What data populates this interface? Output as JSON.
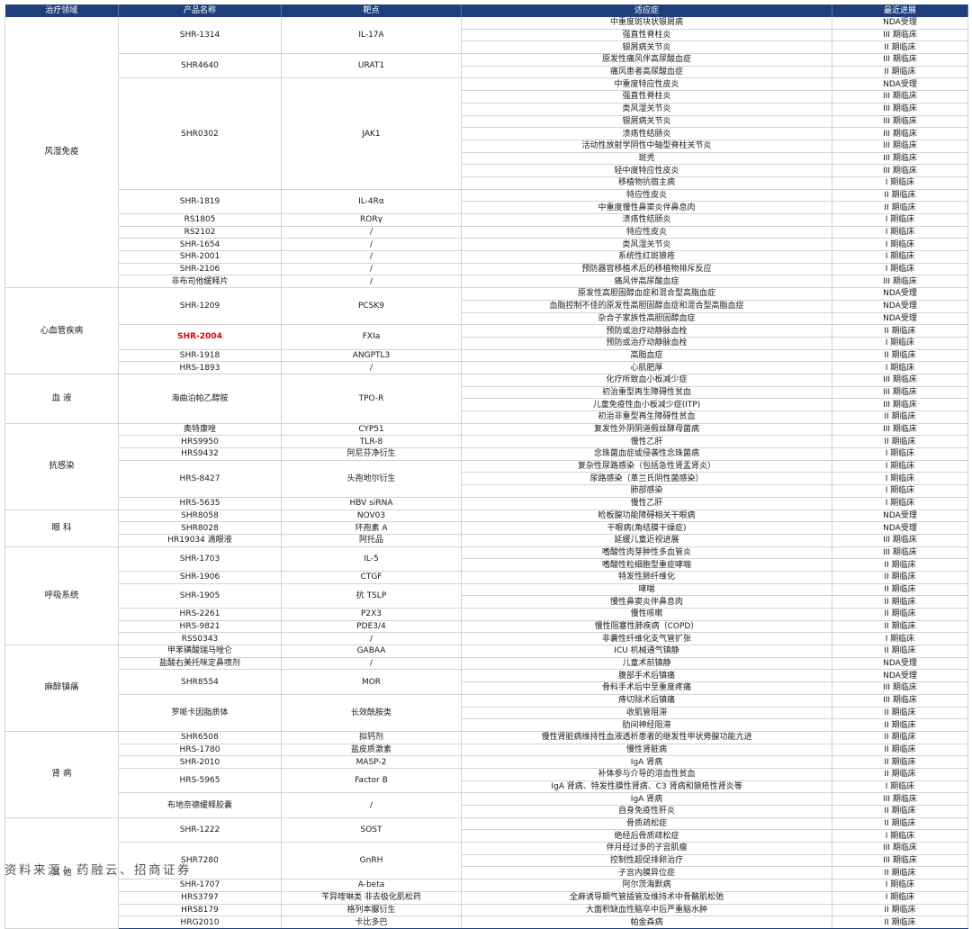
{
  "headers": [
    "治疗领域",
    "产品名称",
    "靶点",
    "适应症",
    "最近进展"
  ],
  "groups": [
    {
      "area": "风湿免疫",
      "products": [
        {
          "name": "SHR-1314",
          "target": "IL-17A",
          "indications": [
            [
              "中重度斑块状银屑病",
              "NDA受理"
            ],
            [
              "强直性脊柱炎",
              "III 期临床"
            ],
            [
              "银屑病关节炎",
              "II 期临床"
            ]
          ]
        },
        {
          "name": "SHR4640",
          "target": "URAT1",
          "indications": [
            [
              "原发性痛风伴高尿酸血症",
              "III 期临床"
            ],
            [
              "痛风患者高尿酸血症",
              "II 期临床"
            ]
          ]
        },
        {
          "name": "SHR0302",
          "target": "JAK1",
          "indications": [
            [
              "中重度特应性皮炎",
              "NDA受理"
            ],
            [
              "强直性脊柱炎",
              "III 期临床"
            ],
            [
              "类风湿关节炎",
              "III 期临床"
            ],
            [
              "银屑病关节炎",
              "III 期临床"
            ],
            [
              "溃疡性结肠炎",
              "III 期临床"
            ],
            [
              "活动性放射学阴性中轴型脊柱关节炎",
              "III 期临床"
            ],
            [
              "斑秃",
              "III 期临床"
            ],
            [
              "轻中度特应性皮炎",
              "III 期临床"
            ],
            [
              "移植物抗宿主病",
              "I 期临床"
            ]
          ]
        },
        {
          "name": "SHR-1819",
          "target": "IL-4Rα",
          "indications": [
            [
              "特应性皮炎",
              "II 期临床"
            ],
            [
              "中重度慢性鼻窦炎伴鼻息肉",
              "II 期临床"
            ]
          ]
        },
        {
          "name": "RS1805",
          "target": "RORγ",
          "indications": [
            [
              "溃疡性结肠炎",
              "I 期临床"
            ]
          ]
        },
        {
          "name": "RS2102",
          "target": "/",
          "indications": [
            [
              "特应性皮炎",
              "I 期临床"
            ]
          ]
        },
        {
          "name": "SHR-1654",
          "target": "/",
          "indications": [
            [
              "类风湿关节炎",
              "I 期临床"
            ]
          ]
        },
        {
          "name": "SHR-2001",
          "target": "/",
          "indications": [
            [
              "系统性红斑狼疮",
              "I 期临床"
            ]
          ]
        },
        {
          "name": "SHR-2106",
          "target": "/",
          "indications": [
            [
              "预防器官移植术后的移植物排斥反应",
              "I 期临床"
            ]
          ]
        },
        {
          "name": "非布司他缓释片",
          "target": "/",
          "indications": [
            [
              "痛风伴高尿酸血症",
              "III 期临床"
            ]
          ]
        }
      ]
    },
    {
      "area": "心血管疾病",
      "products": [
        {
          "name": "SHR-1209",
          "target": "PCSK9",
          "indications": [
            [
              "原发性高胆固醇血症和混合型高脂血症",
              "NDA受理"
            ],
            [
              "血脂控制不佳的原发性高胆固醇血症和混合型高脂血症",
              "NDA受理"
            ],
            [
              "杂合子家族性高胆固醇血症",
              "NDA受理"
            ]
          ]
        },
        {
          "name": "SHR-2004",
          "highlight": true,
          "target": "FXIa",
          "indications": [
            [
              "预防或治疗动静脉血栓",
              "II 期临床"
            ],
            [
              "预防或治疗动静脉血栓",
              "I 期临床"
            ]
          ]
        },
        {
          "name": "SHR-1918",
          "target": "ANGPTL3",
          "indications": [
            [
              "高脂血症",
              "II 期临床"
            ]
          ]
        },
        {
          "name": "HRS-1893",
          "target": "/",
          "indications": [
            [
              "心肌肥厚",
              "I 期临床"
            ]
          ]
        }
      ]
    },
    {
      "area": "血 液",
      "products": [
        {
          "name": "海曲泊帕乙醇胺",
          "target": "TPO-R",
          "indications": [
            [
              "化疗所致血小板减少症",
              "III 期临床"
            ],
            [
              "初治重型再生障碍性贫血",
              "III 期临床"
            ],
            [
              "儿童免疫性血小板减少症(ITP)",
              "III 期临床"
            ],
            [
              "初治非重型再生障碍性贫血",
              "II 期临床"
            ]
          ]
        }
      ]
    },
    {
      "area": "抗感染",
      "products": [
        {
          "name": "奥特康唑",
          "target": "CYP51",
          "indications": [
            [
              "复发性外阴阴道假丝酵母菌病",
              "III 期临床"
            ]
          ]
        },
        {
          "name": "HRS9950",
          "target": "TLR-8",
          "indications": [
            [
              "慢性乙肝",
              "II 期临床"
            ]
          ]
        },
        {
          "name": "HRS9432",
          "target": "阿尼芬净衍生",
          "indications": [
            [
              "念珠菌血症或侵袭性念珠菌病",
              "I 期临床"
            ]
          ]
        },
        {
          "name": "HRS-8427",
          "target": "头孢地尔衍生",
          "indications": [
            [
              "复杂性尿路感染（包括急性肾盂肾炎）",
              "I 期临床"
            ],
            [
              "尿路感染（革兰氏阴性菌感染）",
              "I 期临床"
            ],
            [
              "肺部感染",
              "I 期临床"
            ]
          ]
        },
        {
          "name": "HRS-5635",
          "target": "HBV siRNA",
          "indications": [
            [
              "慢性乙肝",
              "I 期临床"
            ]
          ]
        }
      ]
    },
    {
      "area": "眼 科",
      "products": [
        {
          "name": "SHR8058",
          "target": "NOV03",
          "indications": [
            [
              "睑板腺功能障碍相关干眼病",
              "NDA受理"
            ]
          ]
        },
        {
          "name": "SHR8028",
          "target": "环孢素 A",
          "indications": [
            [
              "干眼病(角结膜干燥症)",
              "NDA受理"
            ]
          ]
        },
        {
          "name": "HR19034 滴眼液",
          "target": "阿托品",
          "indications": [
            [
              "延缓儿童近视进展",
              "III 期临床"
            ]
          ]
        }
      ]
    },
    {
      "area": "呼吸系统",
      "products": [
        {
          "name": "SHR-1703",
          "target": "IL-5",
          "indications": [
            [
              "嗜酸性肉芽肿性多血管炎",
              "III 期临床"
            ],
            [
              "嗜酸性粒细胞型重症哮喘",
              "II 期临床"
            ]
          ]
        },
        {
          "name": "SHR-1906",
          "target": "CTGF",
          "indications": [
            [
              "特发性肺纤维化",
              "II 期临床"
            ]
          ]
        },
        {
          "name": "SHR-1905",
          "target": "抗 TSLP",
          "indications": [
            [
              "哮喘",
              "II 期临床"
            ],
            [
              "慢性鼻窦炎伴鼻息肉",
              "II 期临床"
            ]
          ]
        },
        {
          "name": "HRS-2261",
          "target": "P2X3",
          "indications": [
            [
              "慢性咳嗽",
              "II 期临床"
            ]
          ]
        },
        {
          "name": "HRS-9821",
          "target": "PDE3/4",
          "indications": [
            [
              "慢性阻塞性肺疾病（COPD）",
              "II 期临床"
            ]
          ]
        },
        {
          "name": "RSS0343",
          "target": "/",
          "indications": [
            [
              "非囊性纤维化支气管扩张",
              "I 期临床"
            ]
          ]
        }
      ]
    },
    {
      "area": "麻醉镇痛",
      "products": [
        {
          "name": "甲苯磺酸瑞马唑仑",
          "target": "GABAA",
          "indications": [
            [
              "ICU 机械通气镇静",
              "II 期临床"
            ]
          ]
        },
        {
          "name": "盐酸右美托咪定鼻喷剂",
          "target": "/",
          "indications": [
            [
              "儿童术前镇静",
              "NDA受理"
            ]
          ]
        },
        {
          "name": "SHR8554",
          "target": "MOR",
          "indications": [
            [
              "腹部手术后镇痛",
              "NDA受理"
            ],
            [
              "骨科手术后中至重度疼痛",
              "III 期临床"
            ]
          ]
        },
        {
          "name": "罗哌卡因脂质体",
          "target": "长效酰胺类",
          "indications": [
            [
              "痔切除术后镇痛",
              "III 期临床"
            ],
            [
              "收肌管阻滞",
              "II 期临床"
            ],
            [
              "肋间神经阻滞",
              "II 期临床"
            ]
          ]
        }
      ]
    },
    {
      "area": "肾 病",
      "products": [
        {
          "name": "SHR6508",
          "target": "拟钙剂",
          "indications": [
            [
              "慢性肾脏病维持性血液透析患者的继发性甲状旁腺功能亢进",
              "II 期临床"
            ]
          ]
        },
        {
          "name": "HRS-1780",
          "target": "盐皮质激素",
          "indications": [
            [
              "慢性肾脏病",
              "II 期临床"
            ]
          ]
        },
        {
          "name": "SHR-2010",
          "target": "MASP-2",
          "indications": [
            [
              "IgA 肾病",
              "II 期临床"
            ]
          ]
        },
        {
          "name": "HRS-5965",
          "target": "Factor B",
          "indications": [
            [
              "补体参与介导的溶血性贫血",
              "II 期临床"
            ],
            [
              "IgA 肾病、特发性膜性肾病、C3 肾病和狼疮性肾炎等",
              "I 期临床"
            ]
          ]
        },
        {
          "name": "布地奈德缓释胶囊",
          "target": "/",
          "indications": [
            [
              "IgA 肾病",
              "III 期临床"
            ],
            [
              "自身免疫性肝炎",
              "II 期临床"
            ]
          ]
        }
      ]
    },
    {
      "area": "其 他",
      "products": [
        {
          "name": "SHR-1222",
          "target": "SOST",
          "indications": [
            [
              "骨质疏松症",
              "II 期临床"
            ],
            [
              "绝经后骨质疏松症",
              "I 期临床"
            ]
          ]
        },
        {
          "name": "SHR7280",
          "target": "GnRH",
          "indications": [
            [
              "伴月经过多的子宫肌瘤",
              "III 期临床"
            ],
            [
              "控制性超促排卵治疗",
              "III 期临床"
            ],
            [
              "子宫内膜异位症",
              "II 期临床"
            ]
          ]
        },
        {
          "name": "SHR-1707",
          "target": "A-beta",
          "indications": [
            [
              "阿尔茨海默病",
              "I 期临床"
            ]
          ]
        },
        {
          "name": "HRS3797",
          "target": "苄异喹啉类 非去极化肌松药",
          "indications": [
            [
              "全麻诱导期气管插管及维持术中骨骼肌松弛",
              "I 期临床"
            ]
          ]
        },
        {
          "name": "HRS8179",
          "target": "格列本脲衍生",
          "indications": [
            [
              "大面积缺血性脑卒中后严重脑水肿",
              "II 期临床"
            ]
          ]
        },
        {
          "name": "HRG2010",
          "target": "卡比多巴",
          "indications": [
            [
              "帕金森病",
              "II 期临床"
            ]
          ]
        }
      ]
    }
  ],
  "source": "资料来源：药融云、招商证券"
}
